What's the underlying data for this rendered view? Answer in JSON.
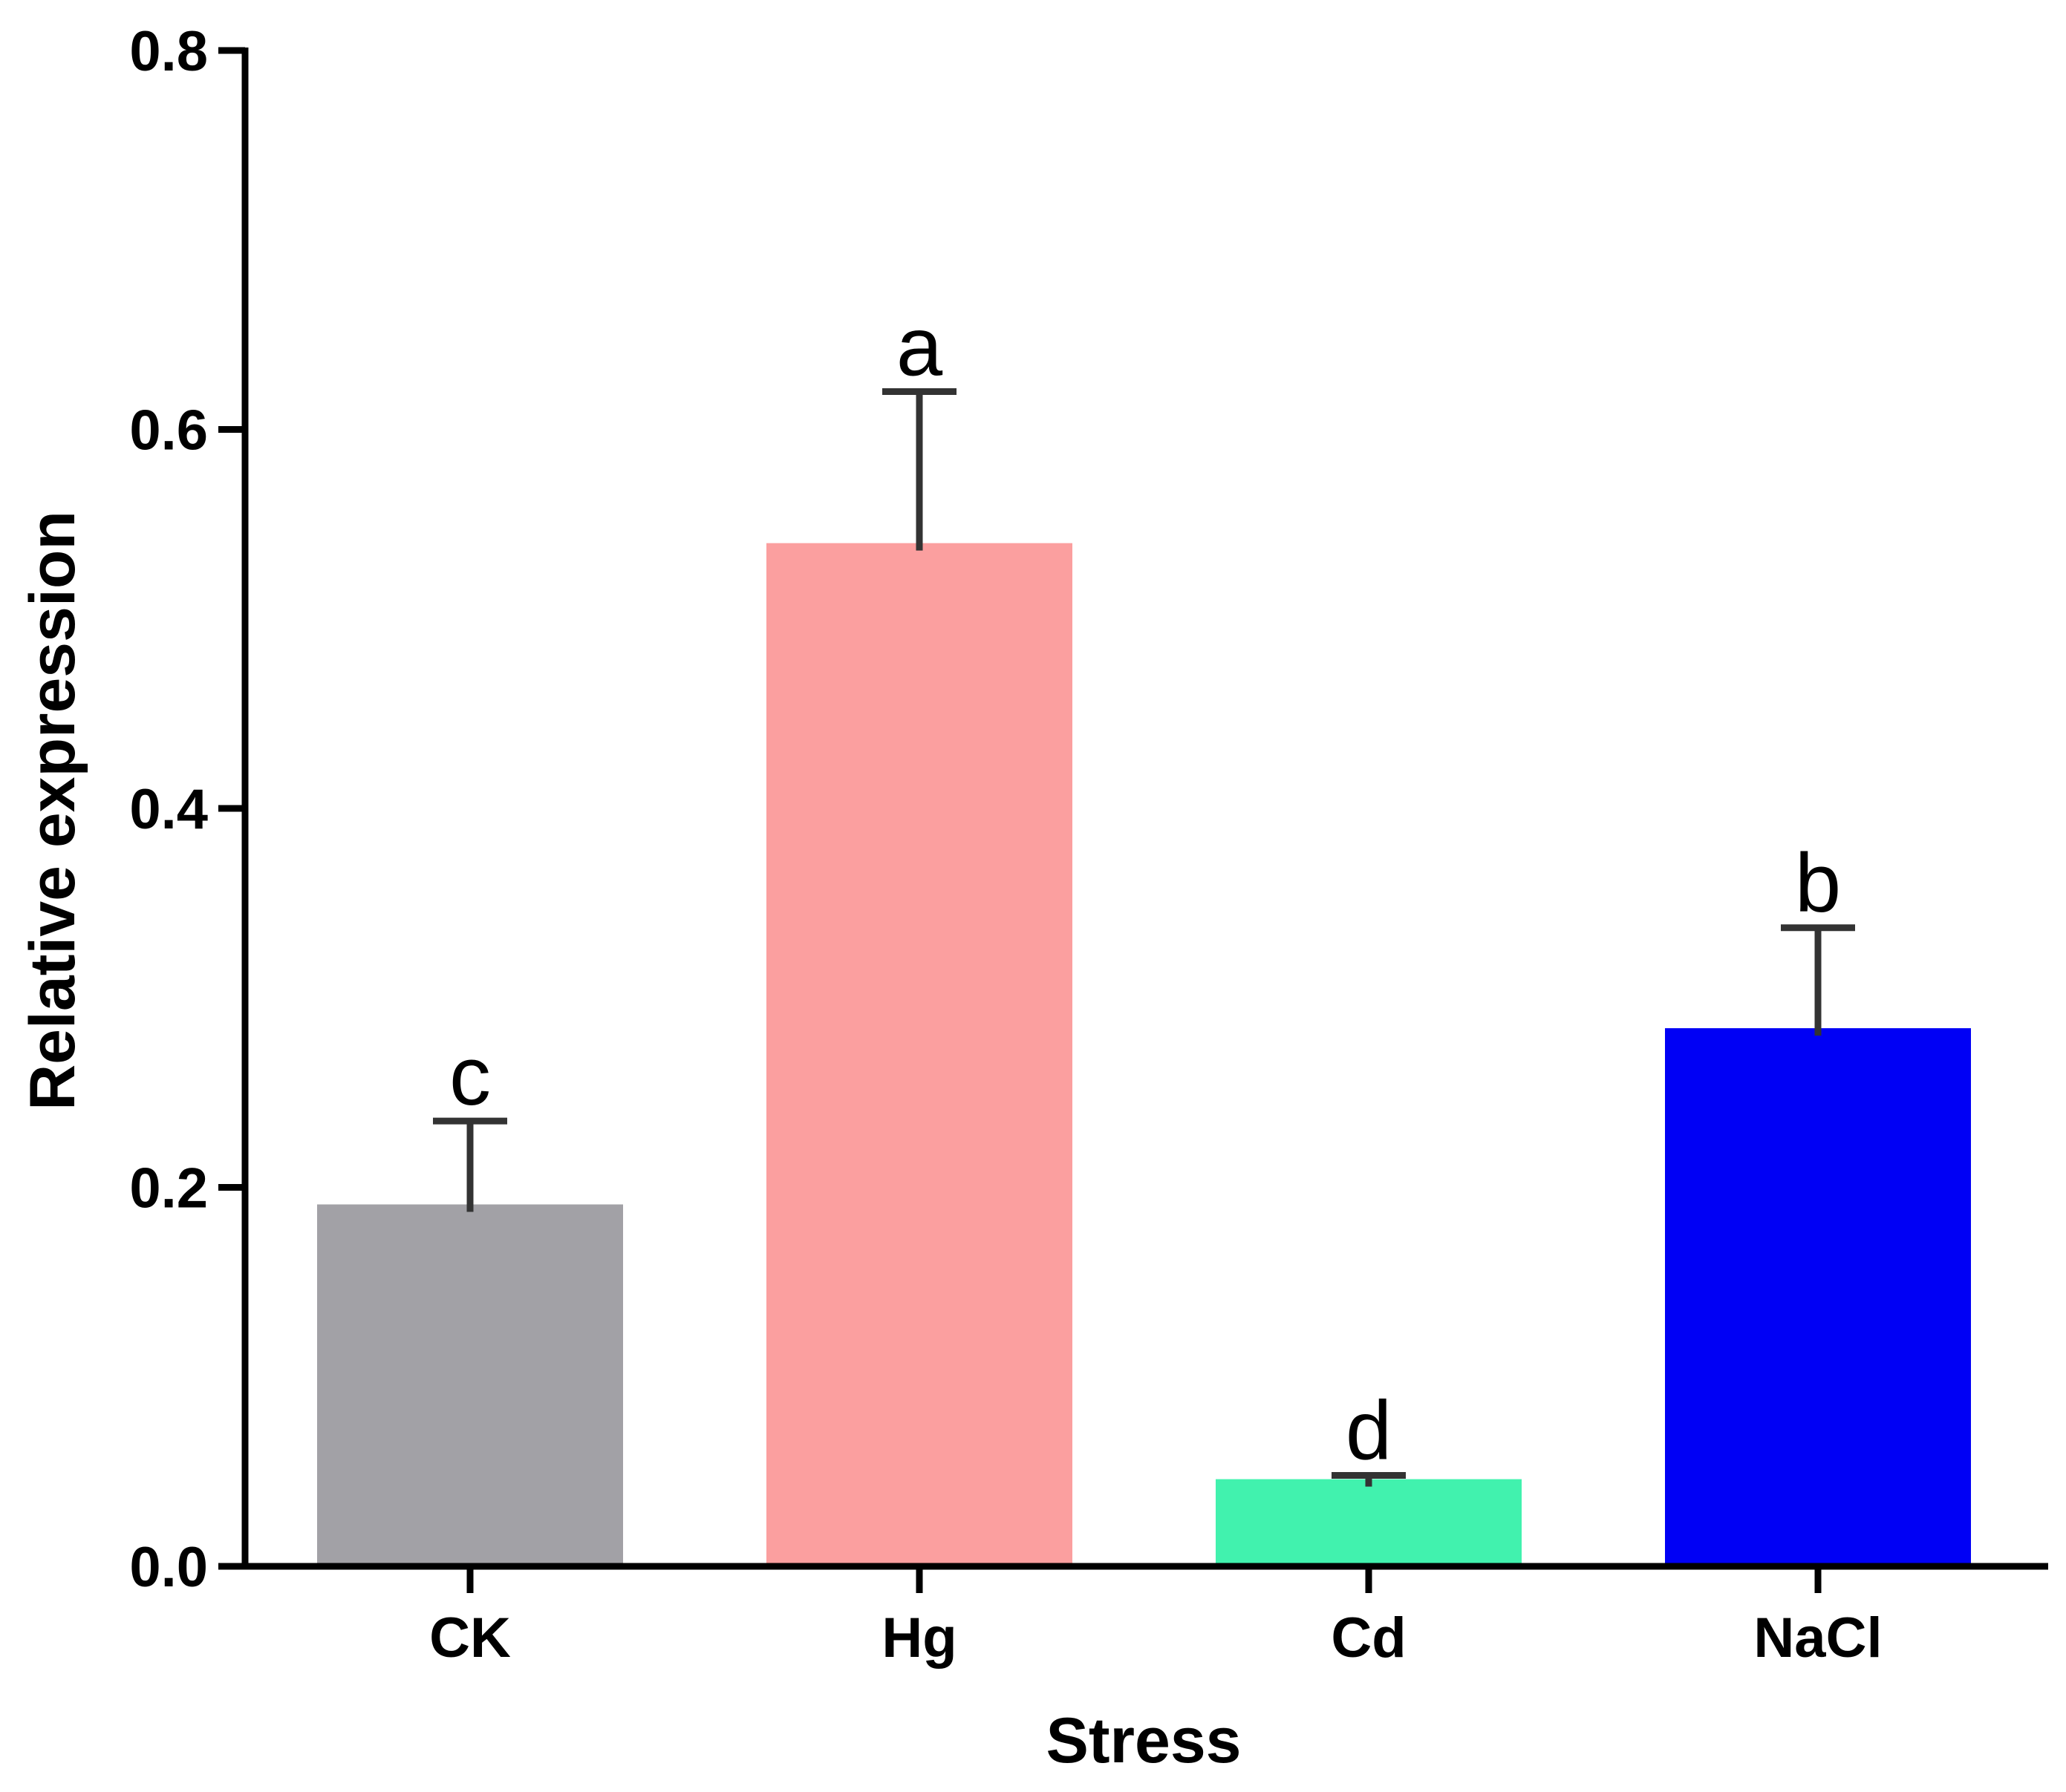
{
  "chart_data": {
    "type": "bar",
    "title": "",
    "xlabel": "Stress",
    "ylabel": "Relative expression",
    "ylim": [
      0,
      0.8
    ],
    "yticks": [
      0.0,
      0.2,
      0.4,
      0.6,
      0.8
    ],
    "ytick_labels": [
      "0.0",
      "0.2",
      "0.4",
      "0.6",
      "0.8"
    ],
    "grid": false,
    "categories": [
      "CK",
      "Hg",
      "Cd",
      "NaCl"
    ],
    "values": [
      0.191,
      0.54,
      0.046,
      0.284
    ],
    "errors": [
      0.044,
      0.08,
      0.002,
      0.053
    ],
    "significance": [
      "c",
      "a",
      "d",
      "b"
    ],
    "colors": [
      "#a2a1a6",
      "#fb9f9f",
      "#41f2ae",
      "#0000f5"
    ],
    "axis_color": "#000000",
    "error_bar_color": "#333333"
  }
}
